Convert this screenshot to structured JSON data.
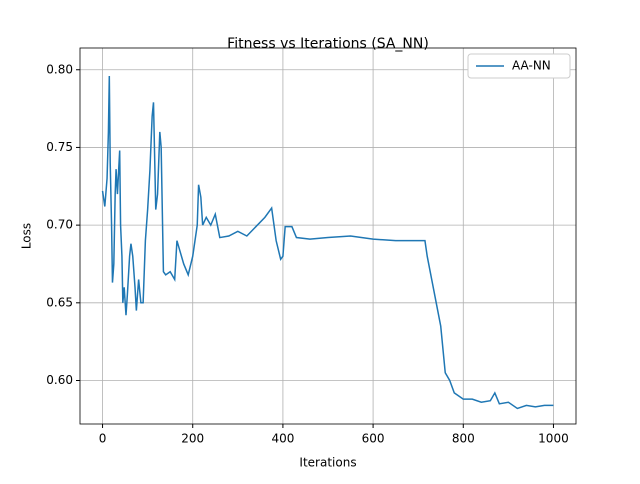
{
  "chart_data": {
    "type": "line",
    "title": "Fitness vs Iterations (SA_NN)",
    "xlabel": "Iterations",
    "ylabel": "Loss",
    "x": [
      0,
      5,
      10,
      13,
      15,
      17,
      20,
      22,
      25,
      28,
      30,
      33,
      38,
      40,
      43,
      45,
      48,
      52,
      55,
      60,
      63,
      67,
      72,
      75,
      80,
      85,
      90,
      95,
      100,
      105,
      110,
      113,
      118,
      122,
      127,
      130,
      135,
      140,
      150,
      160,
      165,
      170,
      180,
      190,
      200,
      210,
      213,
      218,
      222,
      230,
      240,
      250,
      260,
      280,
      300,
      320,
      340,
      360,
      375,
      385,
      395,
      400,
      405,
      420,
      430,
      460,
      500,
      550,
      600,
      650,
      700,
      715,
      720,
      730,
      740,
      750,
      760,
      770,
      780,
      800,
      820,
      840,
      860,
      870,
      880,
      900,
      920,
      940,
      960,
      980,
      1000
    ],
    "series": [
      {
        "name": "AA-NN",
        "color": "#1f77b4",
        "values": [
          0.722,
          0.712,
          0.73,
          0.76,
          0.796,
          0.74,
          0.7,
          0.663,
          0.675,
          0.72,
          0.736,
          0.72,
          0.748,
          0.7,
          0.68,
          0.65,
          0.66,
          0.642,
          0.655,
          0.68,
          0.688,
          0.68,
          0.66,
          0.645,
          0.665,
          0.65,
          0.65,
          0.69,
          0.71,
          0.735,
          0.77,
          0.779,
          0.71,
          0.72,
          0.76,
          0.75,
          0.67,
          0.668,
          0.67,
          0.665,
          0.69,
          0.685,
          0.675,
          0.668,
          0.68,
          0.7,
          0.726,
          0.718,
          0.7,
          0.705,
          0.7,
          0.707,
          0.692,
          0.693,
          0.696,
          0.693,
          0.699,
          0.705,
          0.711,
          0.69,
          0.678,
          0.68,
          0.699,
          0.699,
          0.692,
          0.691,
          0.692,
          0.693,
          0.691,
          0.69,
          0.69,
          0.69,
          0.68,
          0.665,
          0.65,
          0.635,
          0.605,
          0.6,
          0.592,
          0.588,
          0.588,
          0.586,
          0.587,
          0.592,
          0.585,
          0.586,
          0.582,
          0.584,
          0.583,
          0.584,
          0.584
        ]
      }
    ],
    "xlim": [
      -50,
      1050
    ],
    "ylim": [
      0.572,
      0.814
    ],
    "xticks": [
      0,
      200,
      400,
      600,
      800,
      1000
    ],
    "yticks": [
      {
        "value": 0.6,
        "label": "0.60"
      },
      0.65,
      {
        "value": 0.7,
        "label": "0.70"
      },
      0.75,
      {
        "value": 0.8,
        "label": "0.80"
      }
    ],
    "grid": true,
    "legend": "upper right"
  }
}
